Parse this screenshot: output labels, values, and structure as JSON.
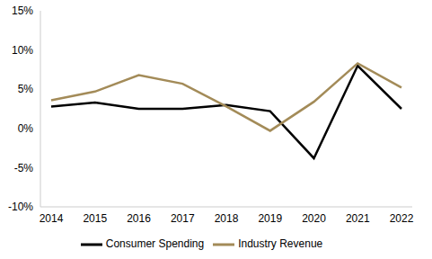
{
  "chart_data": {
    "type": "line",
    "categories": [
      "2014",
      "2015",
      "2016",
      "2017",
      "2018",
      "2019",
      "2020",
      "2021",
      "2022"
    ],
    "series": [
      {
        "name": "Consumer Spending",
        "color": "#000000",
        "values": [
          2.8,
          3.3,
          2.5,
          2.5,
          3.0,
          2.2,
          -3.8,
          8.0,
          2.5
        ]
      },
      {
        "name": "Industry Revenue",
        "color": "#a38b58",
        "values": [
          3.6,
          4.7,
          6.8,
          5.7,
          2.8,
          -0.3,
          3.4,
          8.3,
          5.2
        ]
      }
    ],
    "ylim": [
      -10,
      15
    ],
    "yticks": [
      {
        "value": -10,
        "label": "-10%"
      },
      {
        "value": -5,
        "label": "-5%"
      },
      {
        "value": 0,
        "label": "0%"
      },
      {
        "value": 5,
        "label": "5%"
      },
      {
        "value": 10,
        "label": "10%"
      },
      {
        "value": 15,
        "label": "15%"
      }
    ],
    "grid": false,
    "legend": "bottom"
  }
}
